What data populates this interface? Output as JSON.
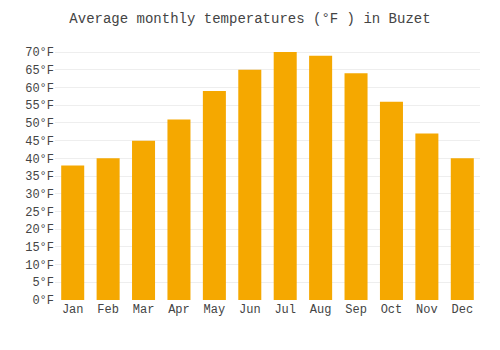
{
  "chart_data": {
    "type": "bar",
    "title": "Average monthly temperatures (°F ) in Buzet",
    "categories": [
      "Jan",
      "Feb",
      "Mar",
      "Apr",
      "May",
      "Jun",
      "Jul",
      "Aug",
      "Sep",
      "Oct",
      "Nov",
      "Dec"
    ],
    "values": [
      38,
      40,
      45,
      51,
      59,
      65,
      70,
      69,
      64,
      56,
      47,
      40
    ],
    "color": "#F5A800",
    "ylim": [
      0,
      72
    ],
    "yticks": [
      {
        "value": 0,
        "label": "0°F"
      },
      {
        "value": 5,
        "label": "5°F"
      },
      {
        "value": 10,
        "label": "10°F"
      },
      {
        "value": 15,
        "label": "15°F"
      },
      {
        "value": 20,
        "label": "20°F"
      },
      {
        "value": 25,
        "label": "25°F"
      },
      {
        "value": 30,
        "label": "30°F"
      },
      {
        "value": 35,
        "label": "35°F"
      },
      {
        "value": 40,
        "label": "40°F"
      },
      {
        "value": 45,
        "label": "45°F"
      },
      {
        "value": 50,
        "label": "50°F"
      },
      {
        "value": 55,
        "label": "55°F"
      },
      {
        "value": 60,
        "label": "60°F"
      },
      {
        "value": 65,
        "label": "65°F"
      },
      {
        "value": 70,
        "label": "70°F"
      }
    ],
    "grid": true
  }
}
